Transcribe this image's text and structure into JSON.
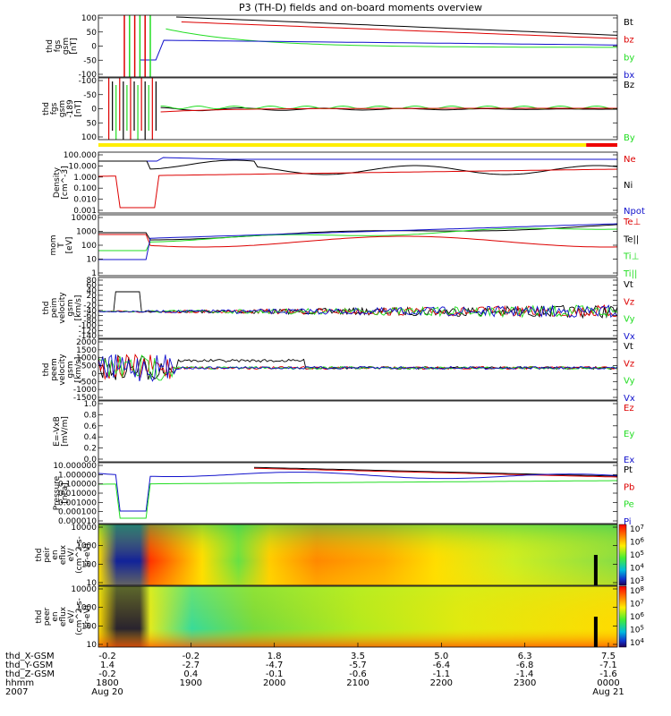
{
  "title": "P3 (TH-D) fields and on-board moments overview",
  "colors": {
    "black": "#000000",
    "red": "#dd0000",
    "green": "#22dd22",
    "blue": "#1111cc",
    "yellow": "#ffee00",
    "barred": "#ee0000"
  },
  "chart_data": [
    {
      "type": "line",
      "ylabel_lines": [
        "thd",
        "fgs",
        "gsm",
        "[nT]"
      ],
      "yticks": [
        "100",
        "50",
        "0",
        "-50",
        "-100"
      ],
      "ylim": [
        -100,
        100
      ],
      "legend": [
        {
          "name": "Bt",
          "color": "black"
        },
        {
          "name": "bz",
          "color": "red"
        },
        {
          "name": "by",
          "color": "green"
        },
        {
          "name": "bx",
          "color": "blue"
        }
      ]
    },
    {
      "type": "line",
      "ylabel_lines": [
        "thd",
        "fgs",
        "gsm",
        "-189",
        "[nT]"
      ],
      "yticks": [
        "-100",
        "-50",
        "0",
        "50",
        "100"
      ],
      "ylim": [
        -120,
        100
      ],
      "legend": [
        {
          "name": "Bz",
          "color": "black"
        },
        {
          "name": "By",
          "color": "green"
        }
      ]
    },
    {
      "type": "line",
      "ylabel_lines": [
        "Density",
        "[cm^-3]"
      ],
      "yticks": [
        "100.000",
        "10.000",
        "1.000",
        "0.100",
        "0.010",
        "0.001"
      ],
      "scale": "log",
      "legend": [
        {
          "name": "Ne",
          "color": "red"
        },
        {
          "name": "Ni",
          "color": "black"
        },
        {
          "name": "Npot",
          "color": "blue"
        }
      ]
    },
    {
      "type": "line",
      "ylabel_lines": [
        "mom",
        "T",
        "[eV]"
      ],
      "yticks": [
        "10000",
        "1000",
        "100",
        "10",
        "1"
      ],
      "scale": "log",
      "legend": [
        {
          "name": "Te⊥",
          "color": "red"
        },
        {
          "name": "Te||",
          "color": "black"
        },
        {
          "name": "Ti⊥",
          "color": "green"
        },
        {
          "name": "Ti||",
          "color": "green"
        }
      ]
    },
    {
      "type": "line",
      "ylabel_lines": [
        "thd",
        "peim",
        "velocity",
        "gsm",
        "[km/s]"
      ],
      "yticks": [
        "80",
        "60",
        "40",
        "20",
        "0",
        "-20",
        "-40",
        "-60",
        "-80",
        "-100",
        "-120",
        "-140"
      ],
      "ylim": [
        -150,
        80
      ],
      "legend": [
        {
          "name": "Vt",
          "color": "black"
        },
        {
          "name": "Vz",
          "color": "red"
        },
        {
          "name": "Vy",
          "color": "green"
        },
        {
          "name": "Vx",
          "color": "blue"
        }
      ]
    },
    {
      "type": "line",
      "ylabel_lines": [
        "thd",
        "peem",
        "velocity",
        "gsm",
        "[km/s]"
      ],
      "yticks": [
        "2000",
        "1500",
        "1000",
        "500",
        "0",
        "-500",
        "-1000",
        "-1500"
      ],
      "ylim": [
        -1500,
        2000
      ],
      "legend": [
        {
          "name": "Vt",
          "color": "black"
        },
        {
          "name": "Vz",
          "color": "red"
        },
        {
          "name": "Vy",
          "color": "green"
        },
        {
          "name": "Vx",
          "color": "blue"
        }
      ]
    },
    {
      "type": "line",
      "ylabel_lines": [
        "E=-VxB",
        "[mV/m]"
      ],
      "yticks": [
        "1.0",
        "0.8",
        "0.6",
        "0.4",
        "0.2",
        "0.0"
      ],
      "ylim": [
        0,
        1
      ],
      "legend": [
        {
          "name": "Ez",
          "color": "red"
        },
        {
          "name": "Ey",
          "color": "green"
        },
        {
          "name": "Ex",
          "color": "blue"
        }
      ]
    },
    {
      "type": "line",
      "ylabel_lines": [
        "Pressure",
        "[nPa]"
      ],
      "yticks": [
        "10.000000",
        "1.000000",
        "0.100000",
        "0.010000",
        "0.001000",
        "0.000100",
        "0.000010"
      ],
      "scale": "log",
      "legend": [
        {
          "name": "Pt",
          "color": "black"
        },
        {
          "name": "Pb",
          "color": "red"
        },
        {
          "name": "Pe",
          "color": "green"
        },
        {
          "name": "Pi",
          "color": "blue"
        }
      ]
    },
    {
      "type": "heatmap",
      "ylabel_lines": [
        "thd",
        "peir",
        "en",
        "eflux",
        "eV/",
        "(cm^2-s-",
        "sr-eV)"
      ],
      "yticks": [
        "10000",
        "1000",
        "100",
        "10"
      ],
      "colorbar_labels": [
        "10^7",
        "10^6",
        "10^5",
        "10^4",
        "10^3"
      ]
    },
    {
      "type": "heatmap",
      "ylabel_lines": [
        "thd",
        "peer",
        "en",
        "eflux",
        "eV/",
        "(cm^2-s-",
        "sr-eV)"
      ],
      "yticks": [
        "10000",
        "1000",
        "100",
        "10"
      ],
      "colorbar_labels": [
        "10^8",
        "10^7",
        "10^6",
        "10^5",
        "10^4"
      ]
    }
  ],
  "x_axis": {
    "row_labels": [
      "thd_X-GSM",
      "thd_Y-GSM",
      "thd_Z-GSM",
      "hhmm",
      "2007"
    ],
    "columns": [
      [
        "-0.2",
        "1.4",
        "-0.2",
        "1800",
        "Aug 20"
      ],
      [
        "-0.2",
        "-2.7",
        "0.4",
        "1900",
        ""
      ],
      [
        "1.8",
        "-4.7",
        "-0.1",
        "2000",
        ""
      ],
      [
        "3.5",
        "-5.7",
        "-0.6",
        "2100",
        ""
      ],
      [
        "5.0",
        "-6.4",
        "-1.1",
        "2200",
        ""
      ],
      [
        "6.3",
        "-6.8",
        "-1.4",
        "2300",
        ""
      ],
      [
        "7.5",
        "-7.1",
        "-1.6",
        "0000",
        "Aug 21"
      ]
    ]
  }
}
